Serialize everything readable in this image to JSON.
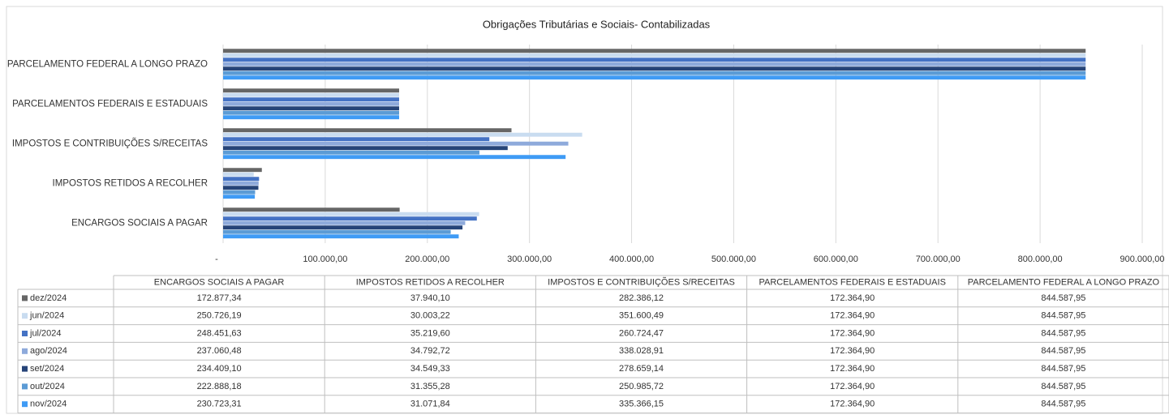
{
  "chart_data": {
    "type": "bar",
    "orientation": "horizontal",
    "title": "Obrigações Tributárias e Sociais- Contabilizadas",
    "categories": [
      "ENCARGOS SOCIAIS A PAGAR",
      "IMPOSTOS RETIDOS A RECOLHER",
      "IMPOSTOS E CONTRIBUIÇÕES S/RECEITAS",
      "PARCELAMENTOS FEDERAIS E ESTADUAIS",
      "PARCELAMENTO FEDERAL A LONGO PRAZO"
    ],
    "series": [
      {
        "name": "dez/2024",
        "color": "#666666",
        "values": [
          172877.34,
          37940.1,
          282386.12,
          172364.9,
          844587.95
        ],
        "value_labels": [
          "172.877,34",
          "37.940,10",
          "282.386,12",
          "172.364,90",
          "844.587,95"
        ]
      },
      {
        "name": "jun/2024",
        "color": "#c9dcf0",
        "values": [
          250726.19,
          30003.22,
          351600.49,
          172364.9,
          844587.95
        ],
        "value_labels": [
          "250.726,19",
          "30.003,22",
          "351.600,49",
          "172.364,90",
          "844.587,95"
        ]
      },
      {
        "name": "jul/2024",
        "color": "#4472c4",
        "values": [
          248451.63,
          35219.6,
          260724.47,
          172364.9,
          844587.95
        ],
        "value_labels": [
          "248.451,63",
          "35.219,60",
          "260.724,47",
          "172.364,90",
          "844.587,95"
        ]
      },
      {
        "name": "ago/2024",
        "color": "#8eaadb",
        "values": [
          237060.48,
          34792.72,
          338028.91,
          172364.9,
          844587.95
        ],
        "value_labels": [
          "237.060,48",
          "34.792,72",
          "338.028,91",
          "172.364,90",
          "844.587,95"
        ]
      },
      {
        "name": "set/2024",
        "color": "#264478",
        "values": [
          234409.1,
          34549.33,
          278659.14,
          172364.9,
          844587.95
        ],
        "value_labels": [
          "234.409,10",
          "34.549,33",
          "278.659,14",
          "172.364,90",
          "844.587,95"
        ]
      },
      {
        "name": "out/2024",
        "color": "#5b9bd5",
        "values": [
          222888.18,
          31355.28,
          250985.72,
          172364.9,
          844587.95
        ],
        "value_labels": [
          "222.888,18",
          "31.355,28",
          "250.985,72",
          "172.364,90",
          "844.587,95"
        ]
      },
      {
        "name": "nov/2024",
        "color": "#3f9bf5",
        "values": [
          230723.31,
          31071.84,
          335366.15,
          172364.9,
          844587.95
        ],
        "value_labels": [
          "230.723,31",
          "31.071,84",
          "335.366,15",
          "172.364,90",
          "844.587,95"
        ]
      }
    ],
    "xlim": [
      0,
      900000
    ],
    "xticks": [
      {
        "value": 0,
        "label": "-"
      },
      {
        "value": 100000,
        "label": "100.000,00"
      },
      {
        "value": 200000,
        "label": "200.000,00"
      },
      {
        "value": 300000,
        "label": "300.000,00"
      },
      {
        "value": 400000,
        "label": "400.000,00"
      },
      {
        "value": 500000,
        "label": "500.000,00"
      },
      {
        "value": 600000,
        "label": "600.000,00"
      },
      {
        "value": 700000,
        "label": "700.000,00"
      },
      {
        "value": 800000,
        "label": "800.000,00"
      },
      {
        "value": 900000,
        "label": "900.000,00"
      }
    ],
    "grid": true,
    "data_table": true
  }
}
